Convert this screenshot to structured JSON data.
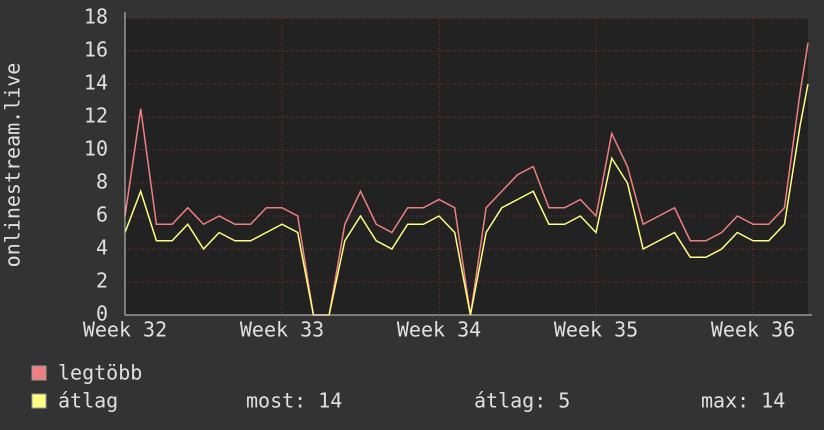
{
  "chart_data": {
    "type": "line",
    "ylabel": "onlinestream.live",
    "x": [
      32.0,
      32.1,
      32.2,
      32.3,
      32.4,
      32.5,
      32.6,
      32.7,
      32.8,
      32.9,
      33.0,
      33.1,
      33.2,
      33.3,
      33.4,
      33.5,
      33.6,
      33.7,
      33.8,
      33.9,
      34.0,
      34.1,
      34.2,
      34.3,
      34.4,
      34.5,
      34.6,
      34.7,
      34.8,
      34.9,
      35.0,
      35.1,
      35.2,
      35.3,
      35.4,
      35.5,
      35.6,
      35.7,
      35.8,
      35.9,
      36.0,
      36.1,
      36.2,
      36.3,
      36.35
    ],
    "series": [
      {
        "name": "legtöbb",
        "color": "#f08080",
        "values": [
          6,
          12.5,
          5.5,
          5.5,
          6.5,
          5.5,
          6,
          5.5,
          5.5,
          6.5,
          6.5,
          6,
          0,
          0,
          5.5,
          7.5,
          5.5,
          5,
          6.5,
          6.5,
          7,
          6.5,
          0,
          6.5,
          7.5,
          8.5,
          9,
          6.5,
          6.5,
          7,
          6,
          11,
          9,
          5.5,
          6,
          6.5,
          4.5,
          4.5,
          5,
          6,
          5.5,
          5.5,
          6.5,
          13.5,
          16.5
        ]
      },
      {
        "name": "átlag",
        "color": "#ffff80",
        "values": [
          5,
          7.5,
          4.5,
          4.5,
          5.5,
          4,
          5,
          4.5,
          4.5,
          5,
          5.5,
          5,
          0,
          0,
          4.5,
          6,
          4.5,
          4,
          5.5,
          5.5,
          6,
          5,
          0,
          5,
          6.5,
          7,
          7.5,
          5.5,
          5.5,
          6,
          5,
          9.5,
          8,
          4,
          4.5,
          5,
          3.5,
          3.5,
          4,
          5,
          4.5,
          4.5,
          5.5,
          11.5,
          14
        ]
      }
    ],
    "xlim": [
      32.0,
      36.35
    ],
    "xticks": [
      {
        "value": 32,
        "label": "Week 32"
      },
      {
        "value": 33,
        "label": "Week 33"
      },
      {
        "value": 34,
        "label": "Week 34"
      },
      {
        "value": 35,
        "label": "Week 35"
      },
      {
        "value": 36,
        "label": "Week 36"
      }
    ],
    "ylim": [
      0,
      18
    ],
    "yticks": [
      0,
      2,
      4,
      6,
      8,
      10,
      12,
      14,
      16,
      18
    ],
    "grid": true,
    "stats": [
      {
        "label": "most:",
        "value": 14
      },
      {
        "label": "átlag:",
        "value": 5
      },
      {
        "label": "max:",
        "value": 14
      }
    ]
  }
}
